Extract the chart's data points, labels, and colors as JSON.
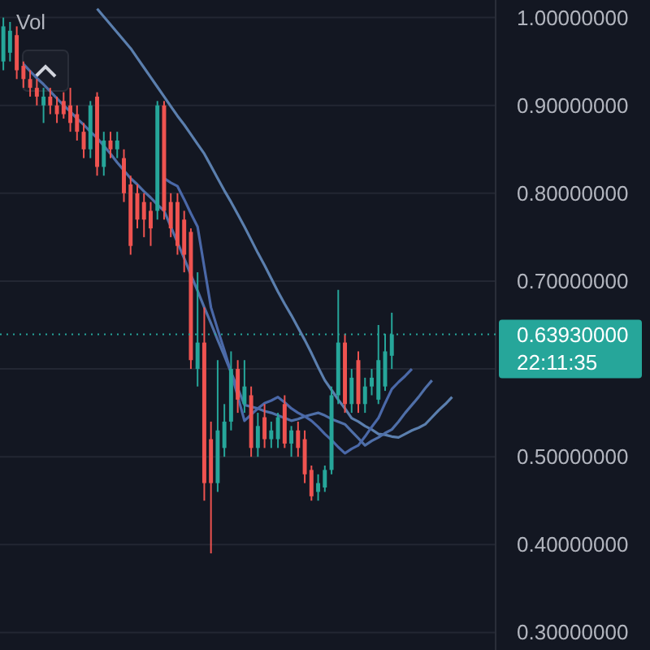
{
  "chart_data": {
    "type": "candlestick",
    "categories": [
      null,
      null,
      null,
      null,
      null,
      null,
      null,
      null,
      null,
      null,
      null,
      null,
      null,
      null,
      null,
      null,
      null,
      null,
      null,
      null,
      null,
      null,
      null,
      null,
      null,
      null,
      null,
      null,
      null,
      null,
      null,
      null,
      null,
      null,
      null,
      null,
      null,
      null,
      null,
      null,
      null,
      null,
      null,
      null,
      null,
      null,
      null,
      null,
      null,
      null,
      null,
      null,
      null,
      null,
      null,
      null,
      null,
      null,
      null,
      null,
      null,
      null,
      null,
      null,
      null,
      null,
      null,
      null,
      null,
      null,
      null,
      null,
      null,
      null
    ],
    "ohlc": [
      [
        0.95,
        1.0,
        0.94,
        0.99
      ],
      [
        0.96,
        0.995,
        0.95,
        0.985
      ],
      [
        0.98,
        0.99,
        0.93,
        0.94
      ],
      [
        0.945,
        0.95,
        0.92,
        0.93
      ],
      [
        0.93,
        0.94,
        0.91,
        0.92
      ],
      [
        0.92,
        0.93,
        0.9,
        0.91
      ],
      [
        0.9,
        0.92,
        0.88,
        0.91
      ],
      [
        0.91,
        0.92,
        0.89,
        0.9
      ],
      [
        0.9,
        0.91,
        0.88,
        0.89
      ],
      [
        0.905,
        0.915,
        0.885,
        0.89
      ],
      [
        0.9,
        0.92,
        0.87,
        0.88
      ],
      [
        0.89,
        0.9,
        0.86,
        0.87
      ],
      [
        0.87,
        0.88,
        0.84,
        0.85
      ],
      [
        0.85,
        0.905,
        0.84,
        0.9
      ],
      [
        0.91,
        0.915,
        0.82,
        0.83
      ],
      [
        0.83,
        0.87,
        0.82,
        0.86
      ],
      [
        0.86,
        0.87,
        0.84,
        0.85
      ],
      [
        0.85,
        0.87,
        0.84,
        0.86
      ],
      [
        0.84,
        0.85,
        0.79,
        0.8
      ],
      [
        0.81,
        0.82,
        0.73,
        0.74
      ],
      [
        0.8,
        0.81,
        0.76,
        0.77
      ],
      [
        0.79,
        0.8,
        0.75,
        0.77
      ],
      [
        0.78,
        0.79,
        0.74,
        0.76
      ],
      [
        0.78,
        0.905,
        0.77,
        0.9
      ],
      [
        0.9,
        0.905,
        0.77,
        0.78
      ],
      [
        0.79,
        0.8,
        0.75,
        0.76
      ],
      [
        0.79,
        0.8,
        0.73,
        0.74
      ],
      [
        0.77,
        0.78,
        0.71,
        0.73
      ],
      [
        0.756,
        0.76,
        0.6,
        0.61
      ],
      [
        0.6,
        0.71,
        0.58,
        0.63
      ],
      [
        0.63,
        0.67,
        0.45,
        0.47
      ],
      [
        0.52,
        0.54,
        0.39,
        0.47
      ],
      [
        0.47,
        0.61,
        0.46,
        0.53
      ],
      [
        0.51,
        0.56,
        0.5,
        0.54
      ],
      [
        0.54,
        0.62,
        0.53,
        0.6
      ],
      [
        0.6,
        0.61,
        0.55,
        0.565
      ],
      [
        0.56,
        0.61,
        0.55,
        0.58
      ],
      [
        0.57,
        0.58,
        0.5,
        0.51
      ],
      [
        0.51,
        0.55,
        0.5,
        0.535
      ],
      [
        0.545,
        0.56,
        0.51,
        0.52
      ],
      [
        0.52,
        0.54,
        0.51,
        0.53
      ],
      [
        0.52,
        0.55,
        0.51,
        0.545
      ],
      [
        0.56,
        0.57,
        0.51,
        0.515
      ],
      [
        0.515,
        0.535,
        0.5,
        0.53
      ],
      [
        0.53,
        0.54,
        0.5,
        0.51
      ],
      [
        0.52,
        0.53,
        0.47,
        0.48
      ],
      [
        0.485,
        0.49,
        0.45,
        0.455
      ],
      [
        0.46,
        0.48,
        0.45,
        0.47
      ],
      [
        0.465,
        0.49,
        0.46,
        0.485
      ],
      [
        0.485,
        0.58,
        0.48,
        0.57
      ],
      [
        0.57,
        0.69,
        0.56,
        0.63
      ],
      [
        0.63,
        0.64,
        0.55,
        0.56
      ],
      [
        0.56,
        0.6,
        0.55,
        0.59
      ],
      [
        0.61,
        0.62,
        0.55,
        0.56
      ],
      [
        0.56,
        0.59,
        0.55,
        0.58
      ],
      [
        0.58,
        0.6,
        0.57,
        0.59
      ],
      [
        0.565,
        0.65,
        0.56,
        0.61
      ],
      [
        0.58,
        0.64,
        0.575,
        0.62
      ],
      [
        0.615,
        0.664,
        0.6,
        0.6393
      ],
      null,
      null,
      null,
      null,
      null,
      null,
      null,
      null,
      null,
      null,
      null,
      null,
      null,
      null,
      null
    ],
    "series": [
      {
        "type": "line",
        "color": "#5b7fae",
        "values": [
          null,
          null,
          null,
          null,
          null,
          null,
          null,
          null,
          null,
          null,
          null,
          null,
          null,
          null,
          1.01,
          1.001,
          0.992,
          0.983,
          0.974,
          0.965,
          0.954,
          0.943,
          0.932,
          0.921,
          0.91,
          0.899,
          0.888,
          0.878,
          0.867,
          0.856,
          0.845,
          0.831,
          0.817,
          0.803,
          0.79,
          0.776,
          0.762,
          0.747,
          0.732,
          0.718,
          0.703,
          0.688,
          0.674,
          0.661,
          0.647,
          0.633,
          0.618,
          0.602,
          0.587,
          0.576,
          0.565,
          0.555,
          0.544,
          0.54,
          0.535,
          0.531,
          0.526,
          0.525,
          0.523,
          0.522,
          0.526,
          0.53,
          0.533,
          0.537,
          0.545,
          0.553,
          0.56,
          0.568,
          null,
          null,
          null,
          null,
          null,
          null
        ]
      },
      {
        "type": "line",
        "color": "#4f6fa8",
        "values": [
          null,
          null,
          null,
          0.947,
          0.939,
          0.931,
          0.924,
          0.916,
          0.908,
          0.9,
          0.893,
          0.885,
          0.878,
          0.87,
          0.863,
          0.854,
          0.845,
          0.835,
          0.826,
          0.817,
          0.81,
          0.802,
          0.795,
          0.787,
          0.78,
          0.762,
          0.744,
          0.726,
          0.707,
          0.689,
          0.67,
          0.652,
          0.633,
          0.615,
          0.596,
          0.578,
          0.559,
          0.557,
          0.555,
          0.552,
          0.55,
          0.547,
          0.544,
          0.541,
          0.543,
          0.546,
          0.548,
          0.55,
          0.547,
          0.543,
          0.54,
          0.537,
          0.529,
          0.521,
          0.513,
          0.518,
          0.522,
          0.527,
          0.531,
          0.54,
          0.55,
          0.559,
          0.568,
          0.578,
          0.587,
          null,
          null,
          null,
          null,
          null,
          null,
          null,
          null,
          null
        ]
      },
      {
        "type": "line",
        "color": "#4a68a8",
        "values": [
          null,
          null,
          null,
          null,
          null,
          null,
          null,
          null,
          null,
          null,
          null,
          null,
          null,
          null,
          null,
          null,
          null,
          null,
          null,
          null,
          null,
          null,
          null,
          null,
          0.817,
          0.812,
          0.808,
          0.793,
          0.777,
          0.762,
          0.716,
          0.67,
          0.645,
          0.621,
          0.596,
          0.569,
          0.541,
          0.548,
          0.555,
          0.561,
          0.564,
          0.568,
          0.562,
          0.555,
          0.55,
          0.546,
          0.541,
          0.534,
          0.526,
          0.519,
          0.511,
          0.504,
          0.509,
          0.513,
          0.523,
          0.534,
          0.544,
          0.561,
          0.577,
          0.585,
          0.592,
          0.6,
          null,
          null,
          null,
          null,
          null,
          null,
          null,
          null,
          null,
          null,
          null,
          null
        ]
      }
    ],
    "ylim": [
      0.28,
      1.02
    ],
    "yticks": [
      {
        "value": 0.3,
        "label": "0.30000000"
      },
      {
        "value": 0.4,
        "label": "0.40000000"
      },
      {
        "value": 0.5,
        "label": "0.50000000"
      },
      {
        "value": 0.6,
        "label": null
      },
      {
        "value": 0.7,
        "label": "0.70000000"
      },
      {
        "value": 0.8,
        "label": "0.80000000"
      },
      {
        "value": 0.9,
        "label": "0.90000000"
      },
      {
        "value": 1,
        "label": "1.00000000"
      }
    ],
    "grid": true,
    "tick_labels": "y",
    "ref_lines": [
      {
        "axis": "y",
        "value": 0.6393,
        "label": "0.63930000",
        "color": "#26a69a",
        "line_style": "dotted"
      }
    ],
    "annotations": [
      "Vol",
      "22:11:35"
    ]
  }
}
